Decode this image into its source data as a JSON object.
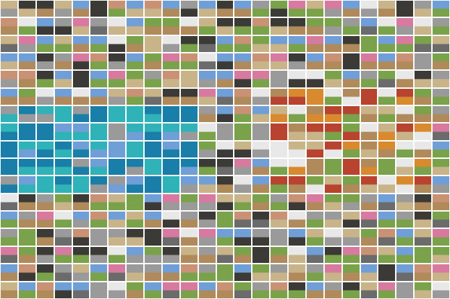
{
  "image": {
    "description_type": "thumbnail-mosaic",
    "palette": {
      "sky": "#6f9fd6",
      "ocean": "#1a7fa8",
      "teal": "#2fb3b8",
      "grass": "#7aa24a",
      "dirt": "#b08a5a",
      "sand": "#c9b48a",
      "concrete": "#9a9a9a",
      "road": "#6b6b6b",
      "skin": "#c99275",
      "dark": "#3b3a36",
      "orange": "#d9892e",
      "red": "#b8442f",
      "white": "#e8e8e8",
      "pink": "#d87aa0"
    }
  }
}
